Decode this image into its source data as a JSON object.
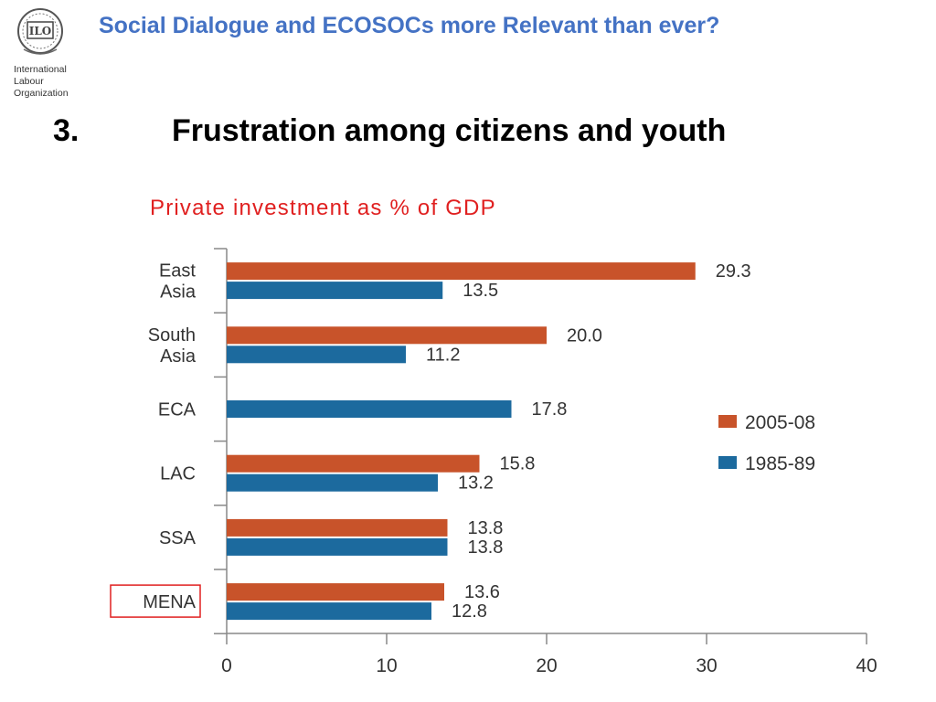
{
  "header": {
    "title": "Social Dialogue and ECOSOCs more Relevant than ever?"
  },
  "logo": {
    "line1": "International",
    "line2": "Labour",
    "line3": "Organization",
    "emblem_text": "ILO"
  },
  "heading": {
    "number": "3.",
    "text": "Frustration among citizens and youth"
  },
  "colors": {
    "title_blue": "#4472c4",
    "series_2005": "#c8532a",
    "series_1985": "#1c6a9e",
    "chart_title_red": "#e02020",
    "highlight_box": "#e02020"
  },
  "chart_data": {
    "type": "bar",
    "orientation": "horizontal",
    "title": "Private investment as % of GDP",
    "categories": [
      "East Asia",
      "South Asia",
      "ECA",
      "LAC",
      "SSA",
      "MENA"
    ],
    "category_lines": [
      [
        "East",
        "Asia"
      ],
      [
        "South",
        "Asia"
      ],
      [
        "ECA"
      ],
      [
        "LAC"
      ],
      [
        "SSA"
      ],
      [
        "MENA"
      ]
    ],
    "series": [
      {
        "name": "2005-08",
        "values": [
          29.3,
          20.0,
          null,
          15.8,
          13.8,
          13.6
        ],
        "labels": [
          "29.3",
          "20.0",
          "",
          "15.8",
          "13.8",
          "13.6"
        ]
      },
      {
        "name": "1985-89",
        "values": [
          13.5,
          11.2,
          17.8,
          13.2,
          13.8,
          12.8
        ],
        "labels": [
          "13.5",
          "11.2",
          "17.8",
          "13.2",
          "13.8",
          "12.8"
        ]
      }
    ],
    "xlim": [
      0,
      40
    ],
    "xticks": [
      "0",
      "10",
      "20",
      "30",
      "40"
    ],
    "xlabel": "",
    "ylabel": "",
    "legend_position": "right",
    "highlighted_category": "MENA",
    "grid": false
  }
}
